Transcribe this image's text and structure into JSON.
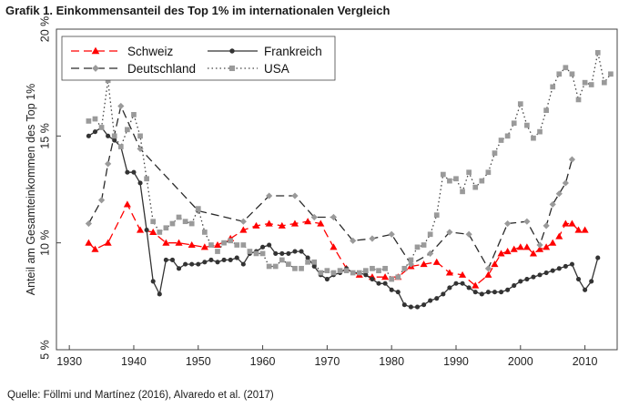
{
  "title": "Grafik 1. Einkommensanteil des Top 1% im internationalen Vergleich",
  "source": "Quelle: Föllmi und Martínez (2016), Alvaredo et al. (2017)",
  "chart_data": {
    "type": "line",
    "title": "Grafik 1. Einkommensanteil des Top 1% im internationalen Vergleich",
    "ylabel": "Anteil am Gesamteinkommen des Top 1%",
    "xlabel": "",
    "xlim": [
      1928,
      2015
    ],
    "ylim": [
      5,
      20
    ],
    "xticks": [
      1930,
      1940,
      1950,
      1960,
      1970,
      1980,
      1990,
      2000,
      2010
    ],
    "yticks": [
      5,
      10,
      15,
      20
    ],
    "ytick_labels": [
      "5 %",
      "10 %",
      "15 %",
      "20 %"
    ],
    "xtick_labels": [
      "1930",
      "1940",
      "1950",
      "1960",
      "1970",
      "1980",
      "1990",
      "2000",
      "2010"
    ],
    "grid": false,
    "legend": "top-left",
    "series": [
      {
        "name": "Schweiz",
        "color": "#ff0000",
        "style": "dashed",
        "marker": "triangle",
        "x": [
          1933,
          1934,
          1936,
          1939,
          1941,
          1943,
          1945,
          1947,
          1949,
          1951,
          1953,
          1955,
          1957,
          1959,
          1961,
          1963,
          1965,
          1967,
          1969,
          1971,
          1973,
          1975,
          1977,
          1979,
          1981,
          1983,
          1985,
          1987,
          1989,
          1991,
          1993,
          1995,
          1996,
          1997,
          1998,
          1999,
          2000,
          2001,
          2002,
          2003,
          2004,
          2005,
          2006,
          2007,
          2008,
          2009,
          2010
        ],
        "y": [
          10.0,
          9.7,
          10.0,
          11.8,
          10.6,
          10.5,
          10.0,
          10.0,
          9.9,
          9.8,
          9.9,
          10.2,
          10.6,
          10.8,
          10.9,
          10.8,
          10.9,
          11.0,
          10.9,
          9.8,
          8.8,
          8.5,
          8.4,
          8.4,
          8.4,
          8.9,
          9.0,
          9.1,
          8.6,
          8.5,
          8.0,
          8.5,
          9.0,
          9.5,
          9.6,
          9.7,
          9.8,
          9.8,
          9.5,
          9.7,
          9.8,
          10.0,
          10.3,
          10.9,
          10.9,
          10.6,
          10.6
        ]
      },
      {
        "name": "Deutschland",
        "color": "#2a2a2a",
        "marker_color": "#9a9a9a",
        "style": "dashed",
        "marker": "diamond",
        "x": [
          1933,
          1935,
          1936,
          1938,
          1941,
          1950,
          1957,
          1961,
          1965,
          1968,
          1971,
          1974,
          1977,
          1980,
          1983,
          1986,
          1989,
          1992,
          1995,
          1998,
          2001,
          2003,
          2004,
          2005,
          2006,
          2007,
          2008
        ],
        "y": [
          10.9,
          12.0,
          13.7,
          16.4,
          14.4,
          11.5,
          11.0,
          12.2,
          12.2,
          11.2,
          11.2,
          10.1,
          10.2,
          10.4,
          9.0,
          9.5,
          10.5,
          10.4,
          8.8,
          10.9,
          11.0,
          9.9,
          10.8,
          11.8,
          12.3,
          12.8,
          13.9
        ]
      },
      {
        "name": "Frankreich",
        "color": "#333333",
        "style": "solid",
        "marker": "circle",
        "x": [
          1933,
          1934,
          1935,
          1936,
          1937,
          1938,
          1939,
          1940,
          1941,
          1942,
          1943,
          1944,
          1945,
          1946,
          1947,
          1948,
          1949,
          1950,
          1951,
          1952,
          1953,
          1954,
          1955,
          1956,
          1957,
          1958,
          1959,
          1960,
          1961,
          1962,
          1963,
          1964,
          1965,
          1966,
          1967,
          1968,
          1969,
          1970,
          1971,
          1972,
          1973,
          1974,
          1975,
          1976,
          1977,
          1978,
          1979,
          1980,
          1981,
          1982,
          1983,
          1984,
          1985,
          1986,
          1987,
          1988,
          1989,
          1990,
          1991,
          1992,
          1993,
          1994,
          1995,
          1996,
          1997,
          1998,
          1999,
          2000,
          2001,
          2002,
          2003,
          2004,
          2005,
          2006,
          2007,
          2008,
          2009,
          2010,
          2011,
          2012
        ],
        "y": [
          15.0,
          15.2,
          15.4,
          15.0,
          14.8,
          14.5,
          13.3,
          13.3,
          12.8,
          10.6,
          8.2,
          7.6,
          9.2,
          9.2,
          8.8,
          9.0,
          9.0,
          9.0,
          9.1,
          9.2,
          9.1,
          9.2,
          9.2,
          9.3,
          9.0,
          9.5,
          9.6,
          9.8,
          9.9,
          9.5,
          9.5,
          9.5,
          9.6,
          9.6,
          9.3,
          8.9,
          8.5,
          8.3,
          8.5,
          8.6,
          8.8,
          8.6,
          8.6,
          8.5,
          8.3,
          8.1,
          8.1,
          7.8,
          7.7,
          7.1,
          7.0,
          7.0,
          7.1,
          7.3,
          7.4,
          7.6,
          7.9,
          8.1,
          8.1,
          7.9,
          7.7,
          7.6,
          7.7,
          7.7,
          7.7,
          7.8,
          8.0,
          8.2,
          8.3,
          8.4,
          8.5,
          8.6,
          8.7,
          8.8,
          8.9,
          9.0,
          8.3,
          7.8,
          8.2,
          9.3
        ]
      },
      {
        "name": "USA",
        "color": "#444444",
        "marker_color": "#9a9a9a",
        "style": "dotted",
        "marker": "square",
        "x": [
          1933,
          1934,
          1935,
          1936,
          1937,
          1938,
          1939,
          1940,
          1941,
          1942,
          1943,
          1944,
          1945,
          1946,
          1947,
          1948,
          1949,
          1950,
          1951,
          1952,
          1953,
          1954,
          1955,
          1956,
          1957,
          1958,
          1959,
          1960,
          1961,
          1962,
          1963,
          1964,
          1965,
          1966,
          1967,
          1968,
          1969,
          1970,
          1971,
          1972,
          1973,
          1974,
          1975,
          1976,
          1977,
          1978,
          1979,
          1980,
          1981,
          1982,
          1983,
          1984,
          1985,
          1986,
          1987,
          1988,
          1989,
          1990,
          1991,
          1992,
          1993,
          1994,
          1995,
          1996,
          1997,
          1998,
          1999,
          2000,
          2001,
          2002,
          2003,
          2004,
          2005,
          2006,
          2007,
          2008,
          2009,
          2010,
          2011,
          2012,
          2013,
          2014
        ],
        "y": [
          15.7,
          15.8,
          15.4,
          17.6,
          15.0,
          14.5,
          15.3,
          16.0,
          15.0,
          13.0,
          11.0,
          10.5,
          10.7,
          10.9,
          11.2,
          11.0,
          10.9,
          11.6,
          10.5,
          9.9,
          9.6,
          10.0,
          10.1,
          9.9,
          9.9,
          9.6,
          9.5,
          9.5,
          8.9,
          8.9,
          9.2,
          9.0,
          8.8,
          8.8,
          9.1,
          9.1,
          8.6,
          8.7,
          8.6,
          8.7,
          8.7,
          8.6,
          8.6,
          8.7,
          8.8,
          8.7,
          8.8,
          8.3,
          8.4,
          8.8,
          9.2,
          9.8,
          9.9,
          10.4,
          11.3,
          13.2,
          12.9,
          13.0,
          12.4,
          13.3,
          12.6,
          12.9,
          13.3,
          14.2,
          14.8,
          15.0,
          15.6,
          16.5,
          15.5,
          14.9,
          15.2,
          16.2,
          17.3,
          17.9,
          18.2,
          17.9,
          16.7,
          17.5,
          17.4,
          18.9,
          17.5,
          17.9
        ]
      }
    ]
  }
}
